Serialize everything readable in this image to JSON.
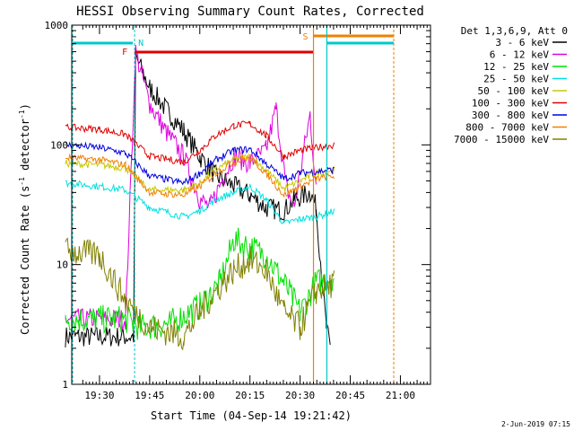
{
  "chart_data": {
    "type": "line",
    "title": "HESSI Observing Summary Count Rates, Corrected",
    "xlabel": "Start Time (04-Sep-14 19:21:42)",
    "ylabel_main": "Corrected Count Rate (s",
    "ylabel_sup1": "-1",
    "ylabel_mid": " detector",
    "ylabel_sup2": "-1",
    "ylabel_end": ")",
    "footer_date": "2-Jun-2019 07:15",
    "y_scale": "log",
    "ylim": [
      1,
      1000
    ],
    "xlim_minutes": [
      19.3,
      21.2
    ],
    "x_ticks": [
      "19:30",
      "19:45",
      "20:00",
      "20:15",
      "20:30",
      "20:45",
      "21:00"
    ],
    "y_ticks": [
      "1",
      "10",
      "100",
      "1000"
    ],
    "legend": {
      "title": "Det 1,3,6,9, Att 0",
      "placement": "right",
      "entries": [
        {
          "label": "3 - 6 keV",
          "color": "#000000"
        },
        {
          "label": "6 - 12 keV",
          "color": "#e000e0"
        },
        {
          "label": "12 - 25 keV",
          "color": "#00e000"
        },
        {
          "label": "25 - 50 keV",
          "color": "#00e0e0"
        },
        {
          "label": "50 - 100 keV",
          "color": "#c8c800"
        },
        {
          "label": "100 - 300 keV",
          "color": "#e00000"
        },
        {
          "label": "300 - 800 keV",
          "color": "#0000e0"
        },
        {
          "label": "800 - 7000 keV",
          "color": "#f08000"
        },
        {
          "label": "7000 - 15000 keV",
          "color": "#808000"
        }
      ]
    },
    "markers": [
      {
        "label": "N",
        "color": "#00c8c8",
        "x": "19:40.5"
      },
      {
        "label": "F",
        "color": "#e00000",
        "x": "19:40.5"
      },
      {
        "label": "S",
        "color": "#f08000",
        "x": "20:34"
      }
    ],
    "series": [
      {
        "name": "3 - 6 keV",
        "color": "#000000",
        "points": [
          [
            19.33,
            2.5
          ],
          [
            19.67,
            2.5
          ],
          [
            19.68,
            550
          ],
          [
            19.75,
            300
          ],
          [
            19.83,
            200
          ],
          [
            19.92,
            130
          ],
          [
            20.0,
            80
          ],
          [
            20.08,
            55
          ],
          [
            20.17,
            45
          ],
          [
            20.25,
            38
          ],
          [
            20.33,
            30
          ],
          [
            20.42,
            28
          ],
          [
            20.47,
            35
          ],
          [
            20.55,
            40
          ],
          [
            20.58,
            30
          ],
          [
            20.63,
            3
          ],
          [
            20.65,
            2
          ]
        ]
      },
      {
        "name": "6 - 12 keV",
        "color": "#e000e0",
        "points": [
          [
            19.33,
            3.5
          ],
          [
            19.63,
            3.5
          ],
          [
            19.68,
            600
          ],
          [
            19.75,
            220
          ],
          [
            19.83,
            130
          ],
          [
            19.92,
            80
          ],
          [
            20.0,
            35
          ],
          [
            20.05,
            30
          ],
          [
            20.12,
            55
          ],
          [
            20.17,
            80
          ],
          [
            20.25,
            70
          ],
          [
            20.33,
            90
          ],
          [
            20.38,
            200
          ],
          [
            20.43,
            45
          ],
          [
            20.47,
            30
          ],
          [
            20.55,
            180
          ],
          [
            20.58,
            40
          ]
        ]
      },
      {
        "name": "12 - 25 keV",
        "color": "#00e000",
        "points": [
          [
            19.33,
            3.5
          ],
          [
            19.63,
            3.5
          ],
          [
            19.7,
            3.0
          ],
          [
            19.85,
            3.2
          ],
          [
            20.0,
            4.5
          ],
          [
            20.1,
            7
          ],
          [
            20.17,
            16
          ],
          [
            20.25,
            14
          ],
          [
            20.33,
            12
          ],
          [
            20.42,
            7
          ],
          [
            20.5,
            4
          ],
          [
            20.58,
            7
          ],
          [
            20.67,
            8
          ]
        ]
      },
      {
        "name": "25 - 50 keV",
        "color": "#00e0e0",
        "points": [
          [
            19.33,
            48
          ],
          [
            19.5,
            45
          ],
          [
            19.63,
            42
          ],
          [
            19.75,
            30
          ],
          [
            19.92,
            25
          ],
          [
            20.0,
            28
          ],
          [
            20.08,
            35
          ],
          [
            20.17,
            40
          ],
          [
            20.25,
            45
          ],
          [
            20.33,
            35
          ],
          [
            20.42,
            22
          ],
          [
            20.5,
            24
          ],
          [
            20.58,
            25
          ],
          [
            20.67,
            28
          ]
        ]
      },
      {
        "name": "50 - 100 keV",
        "color": "#c8c800",
        "points": [
          [
            19.33,
            70
          ],
          [
            19.5,
            68
          ],
          [
            19.63,
            64
          ],
          [
            19.75,
            42
          ],
          [
            19.92,
            42
          ],
          [
            20.0,
            48
          ],
          [
            20.08,
            62
          ],
          [
            20.17,
            76
          ],
          [
            20.25,
            80
          ],
          [
            20.33,
            62
          ],
          [
            20.42,
            43
          ],
          [
            20.5,
            50
          ],
          [
            20.58,
            58
          ],
          [
            20.67,
            62
          ]
        ]
      },
      {
        "name": "100 - 300 keV",
        "color": "#e00000",
        "points": [
          [
            19.33,
            140
          ],
          [
            19.5,
            135
          ],
          [
            19.63,
            122
          ],
          [
            19.75,
            80
          ],
          [
            19.92,
            72
          ],
          [
            20.0,
            90
          ],
          [
            20.08,
            120
          ],
          [
            20.17,
            145
          ],
          [
            20.25,
            150
          ],
          [
            20.33,
            120
          ],
          [
            20.42,
            80
          ],
          [
            20.5,
            90
          ],
          [
            20.58,
            95
          ],
          [
            20.67,
            100
          ]
        ]
      },
      {
        "name": "300 - 800 keV",
        "color": "#0000e0",
        "points": [
          [
            19.33,
            100
          ],
          [
            19.5,
            95
          ],
          [
            19.63,
            85
          ],
          [
            19.75,
            55
          ],
          [
            19.92,
            48
          ],
          [
            20.0,
            58
          ],
          [
            20.08,
            75
          ],
          [
            20.17,
            90
          ],
          [
            20.25,
            92
          ],
          [
            20.33,
            70
          ],
          [
            20.42,
            52
          ],
          [
            20.5,
            58
          ],
          [
            20.58,
            60
          ],
          [
            20.67,
            62
          ]
        ]
      },
      {
        "name": "800 - 7000 keV",
        "color": "#f08000",
        "points": [
          [
            19.33,
            78
          ],
          [
            19.5,
            75
          ],
          [
            19.63,
            68
          ],
          [
            19.75,
            40
          ],
          [
            19.92,
            38
          ],
          [
            20.0,
            45
          ],
          [
            20.08,
            58
          ],
          [
            20.17,
            72
          ],
          [
            20.25,
            78
          ],
          [
            20.33,
            58
          ],
          [
            20.42,
            38
          ],
          [
            20.5,
            45
          ],
          [
            20.58,
            52
          ],
          [
            20.67,
            55
          ]
        ]
      },
      {
        "name": "7000 - 15000 keV",
        "color": "#808000",
        "points": [
          [
            19.33,
            13
          ],
          [
            19.5,
            12
          ],
          [
            19.63,
            5
          ],
          [
            19.75,
            3
          ],
          [
            19.92,
            2.5
          ],
          [
            20.0,
            4
          ],
          [
            20.08,
            6
          ],
          [
            20.17,
            9
          ],
          [
            20.25,
            11
          ],
          [
            20.33,
            9
          ],
          [
            20.42,
            4
          ],
          [
            20.5,
            3
          ],
          [
            20.58,
            6
          ],
          [
            20.67,
            7
          ]
        ]
      }
    ]
  }
}
